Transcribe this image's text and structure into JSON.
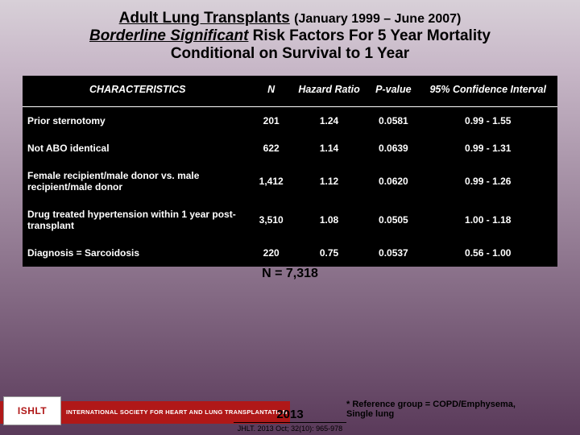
{
  "title": {
    "main": "Adult Lung Transplants",
    "dates": "(January 1999 – June 2007)",
    "line2_emph": "Borderline Significant",
    "line2_rest": " Risk Factors For 5 Year Mortality",
    "line3": "Conditional on Survival to 1 Year"
  },
  "table": {
    "headers": {
      "characteristics": "CHARACTERISTICS",
      "n": "N",
      "hr": "Hazard Ratio",
      "pvalue": "P-value",
      "ci": "95% Confidence Interval"
    },
    "rows": [
      {
        "char": "Prior sternotomy",
        "n": "201",
        "hr": "1.24",
        "p": "0.0581",
        "ci": "0.99 - 1.55"
      },
      {
        "char": "Not ABO identical",
        "n": "622",
        "hr": "1.14",
        "p": "0.0639",
        "ci": "0.99 - 1.31"
      },
      {
        "char": "Female recipient/male donor vs. male recipient/male donor",
        "n": "1,412",
        "hr": "1.12",
        "p": "0.0620",
        "ci": "0.99 - 1.26"
      },
      {
        "char": "Drug treated hypertension within 1 year post-transplant",
        "n": "3,510",
        "hr": "1.08",
        "p": "0.0505",
        "ci": "1.00 - 1.18"
      },
      {
        "char": "Diagnosis = Sarcoidosis",
        "n": "220",
        "hr": "0.75",
        "p": "0.0537",
        "ci": "0.56 - 1.00"
      }
    ],
    "col_widths": [
      "43%",
      "12%",
      "13%",
      "12%",
      "20%"
    ],
    "background_color": "#000000",
    "text_color": "#ffffff",
    "header_border_color": "#ffffff"
  },
  "footer": {
    "n_total": "N = 7,318",
    "year": "2013",
    "citation": "JHLT. 2013 Oct; 32(10): 965-978",
    "ref_note_l1": "* Reference group = COPD/Emphysema,",
    "ref_note_l2": "Single lung",
    "logo_text": "ISHLT",
    "logo_bar_text": "INTERNATIONAL SOCIETY FOR HEART AND LUNG TRANSPLANTATION"
  },
  "colors": {
    "logo_red": "#b01818",
    "bg_top": "#d8d0d8",
    "bg_bottom": "#5a3a5a"
  }
}
